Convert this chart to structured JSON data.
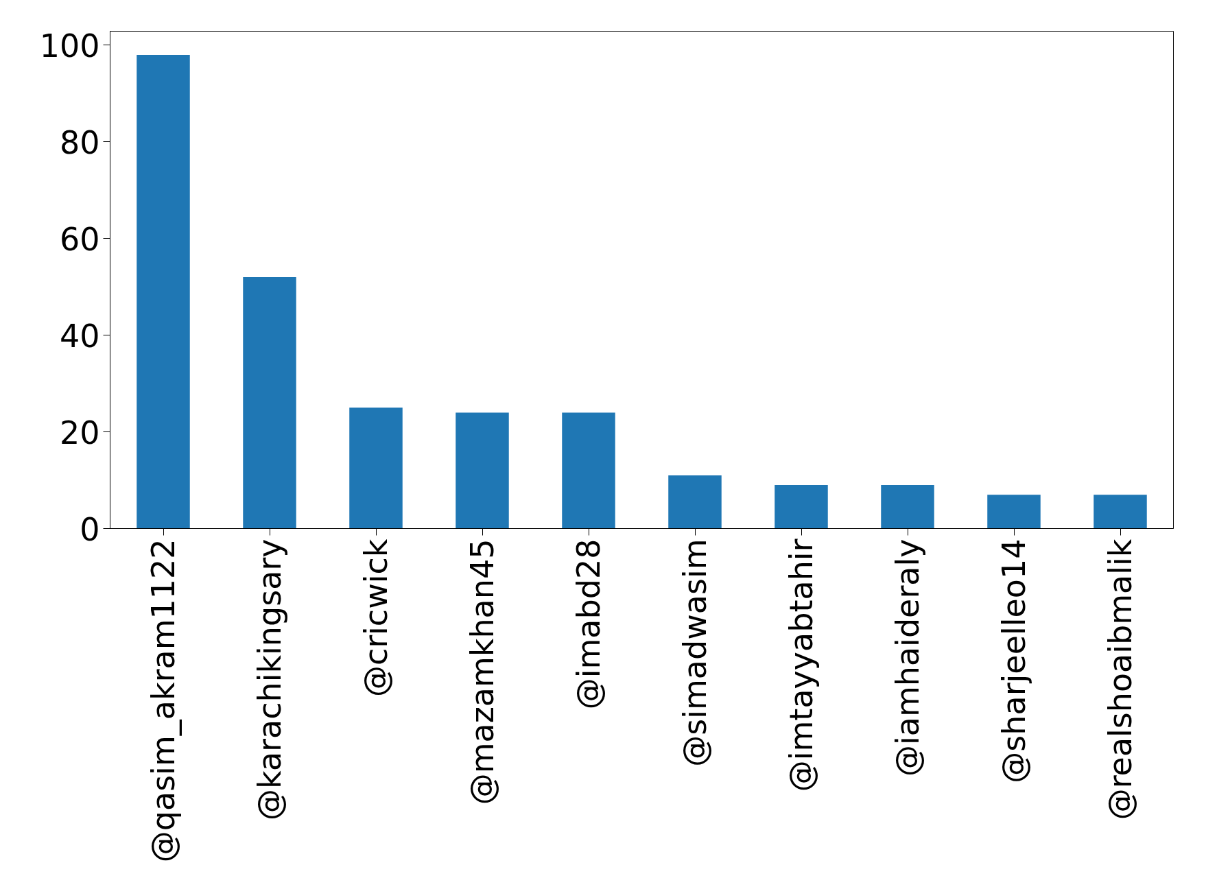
{
  "chart_data": {
    "type": "bar",
    "categories": [
      "@qasim_akram1122",
      "@karachikingsary",
      "@cricwick",
      "@mazamkhan45",
      "@imabd28",
      "@simadwasim",
      "@imtayyabtahir",
      "@iamhaideraly",
      "@sharjeelleo14",
      "@realshoaibmalik"
    ],
    "values": [
      98,
      52,
      25,
      24,
      24,
      11,
      9,
      9,
      7,
      7
    ],
    "color": "#1f77b4",
    "ylim": [
      0,
      102.9
    ],
    "yticks": [
      0,
      20,
      40,
      60,
      80,
      100
    ],
    "grid": false
  }
}
